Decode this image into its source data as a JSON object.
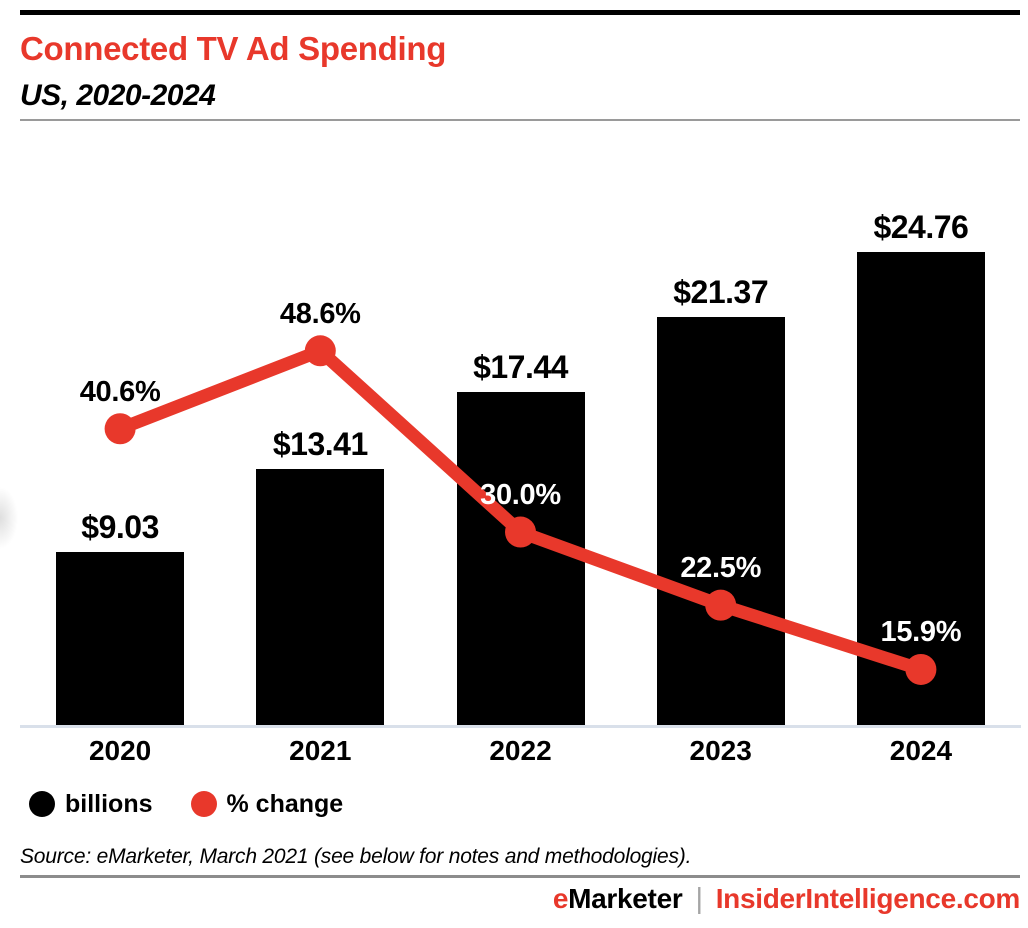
{
  "header": {
    "title": "Connected TV Ad Spending",
    "subtitle": "US, 2020-2024"
  },
  "chart_data": {
    "type": "bar",
    "title": "Connected TV Ad Spending",
    "subtitle": "US, 2020-2024",
    "categories": [
      "2020",
      "2021",
      "2022",
      "2023",
      "2024"
    ],
    "series": [
      {
        "name": "billions",
        "type": "bar",
        "values": [
          9.03,
          13.41,
          17.44,
          21.37,
          24.76
        ],
        "labels": [
          "$9.03",
          "$13.41",
          "$17.44",
          "$21.37",
          "$24.76"
        ],
        "color": "#000000",
        "label_colors": [
          "#000000",
          "#000000",
          "#000000",
          "#000000",
          "#000000"
        ]
      },
      {
        "name": "% change",
        "type": "line",
        "values": [
          40.6,
          48.6,
          30.0,
          22.5,
          15.9
        ],
        "labels": [
          "40.6%",
          "48.6%",
          "30.0%",
          "22.5%",
          "15.9%"
        ],
        "color": "#e8382b",
        "label_colors": [
          "#000000",
          "#000000",
          "#ffffff",
          "#ffffff",
          "#ffffff"
        ]
      }
    ],
    "legend": [
      {
        "label": "billions",
        "color": "#000000"
      },
      {
        "label": "% change",
        "color": "#e8382b"
      }
    ],
    "legend_position": "bottom-left",
    "grid": false,
    "bar_ylim": [
      0,
      28.0
    ],
    "line_ylim": [
      10.2,
      65.1
    ],
    "xlabel": "",
    "ylabel": ""
  },
  "source": {
    "text": "Source: eMarketer, March 2021 (see below for notes and methodologies)."
  },
  "footer": {
    "brand_prefix": "e",
    "brand_rest": "Marketer",
    "separator": "|",
    "site": "InsiderIntelligence.com"
  },
  "colors": {
    "accent": "#e8382b",
    "axis_line": "#d9e0ea",
    "divider": "#8c8c8c",
    "header_rule": "#9a9a9a",
    "bar": "#000000"
  }
}
